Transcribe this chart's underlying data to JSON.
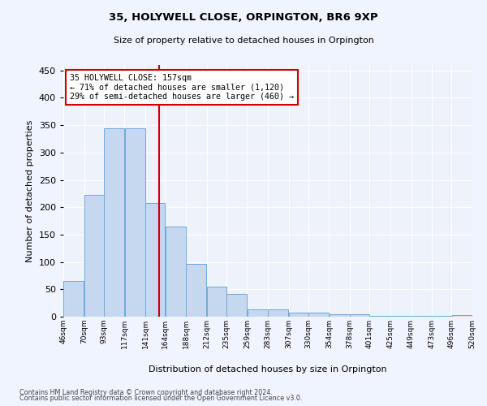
{
  "title": "35, HOLYWELL CLOSE, ORPINGTON, BR6 9XP",
  "subtitle": "Size of property relative to detached houses in Orpington",
  "xlabel": "Distribution of detached houses by size in Orpington",
  "ylabel": "Number of detached properties",
  "property_label": "35 HOLYWELL CLOSE: 157sqm",
  "annotation_line1": "← 71% of detached houses are smaller (1,120)",
  "annotation_line2": "29% of semi-detached houses are larger (460) →",
  "bar_edges": [
    46,
    70,
    93,
    117,
    141,
    164,
    188,
    212,
    235,
    259,
    283,
    307,
    330,
    354,
    378,
    401,
    425,
    449,
    473,
    496,
    520
  ],
  "bar_heights": [
    65,
    222,
    345,
    345,
    208,
    165,
    97,
    55,
    42,
    13,
    13,
    8,
    7,
    5,
    4,
    1,
    1,
    2,
    1,
    3
  ],
  "bar_color": "#c5d8f0",
  "bar_edge_color": "#6fa8d8",
  "vline_color": "#cc0000",
  "vline_x": 157,
  "background_color": "#eef2fb",
  "grid_color": "#ffffff",
  "ylim": [
    0,
    460
  ],
  "yticks": [
    0,
    50,
    100,
    150,
    200,
    250,
    300,
    350,
    400,
    450
  ],
  "footer_line1": "Contains HM Land Registry data © Crown copyright and database right 2024.",
  "footer_line2": "Contains public sector information licensed under the Open Government Licence v3.0."
}
